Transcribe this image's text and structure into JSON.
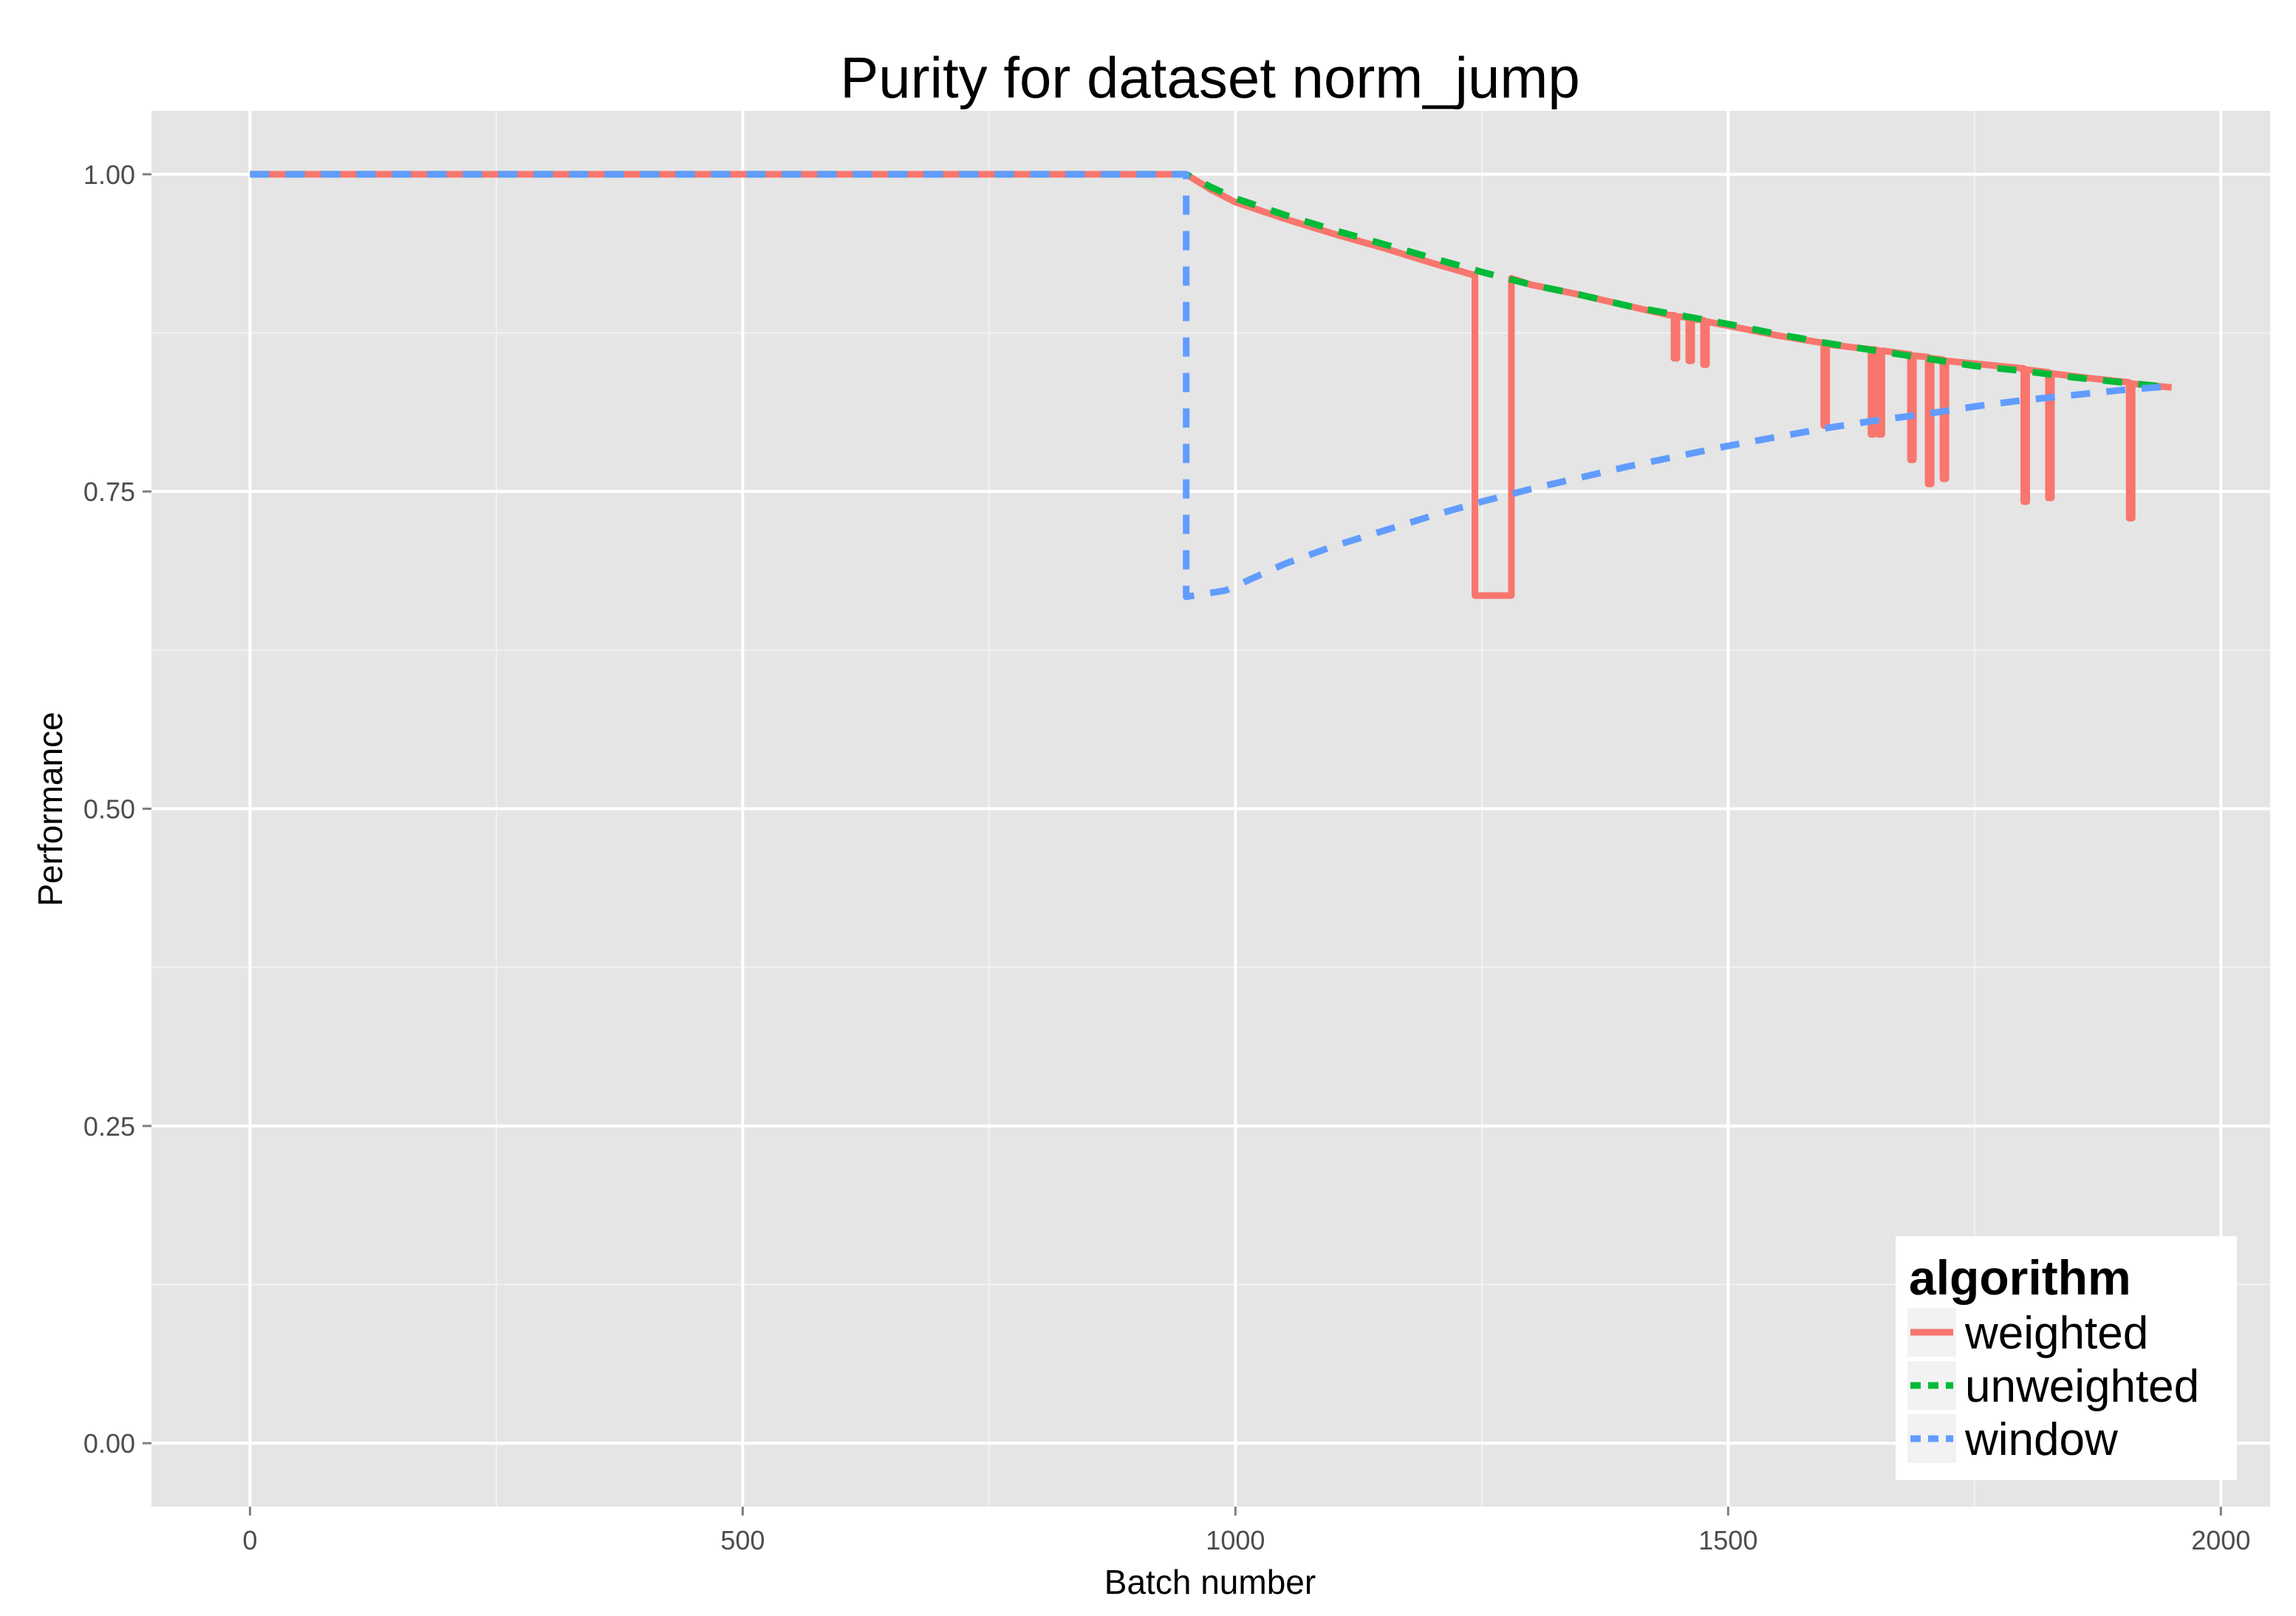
{
  "chart_data": {
    "type": "line",
    "title": "Purity for dataset norm_jump",
    "xlabel": "Batch number",
    "ylabel": "Performance",
    "xlim": [
      -100,
      2050
    ],
    "ylim": [
      -0.05,
      1.05
    ],
    "x_ticks": [
      0,
      500,
      1000,
      1500,
      2000
    ],
    "x_tick_labels": [
      "0",
      "500",
      "1000",
      "1500",
      "2000"
    ],
    "y_ticks": [
      0,
      0.25,
      0.5,
      0.75,
      1
    ],
    "y_tick_labels": [
      "0.00",
      "0.25",
      "0.50",
      "0.75",
      "1.00"
    ],
    "grid": true,
    "legend": {
      "title": "algorithm",
      "position": "bottom-right",
      "entries": [
        "weighted",
        "unweighted",
        "window"
      ]
    },
    "series": [
      {
        "name": "weighted",
        "color": "#F8766D",
        "style": "solid",
        "points": [
          [
            0,
            1.0
          ],
          [
            950,
            1.0
          ],
          [
            975,
            0.988
          ],
          [
            1000,
            0.978
          ],
          [
            1050,
            0.965
          ],
          [
            1100,
            0.953
          ],
          [
            1150,
            0.942
          ],
          [
            1200,
            0.93
          ],
          [
            1240,
            0.921
          ],
          [
            1243,
            0.921
          ],
          [
            1243,
            0.668
          ],
          [
            1280,
            0.668
          ],
          [
            1280,
            0.918
          ],
          [
            1300,
            0.913
          ],
          [
            1350,
            0.905
          ],
          [
            1400,
            0.896
          ],
          [
            1440,
            0.889
          ],
          [
            1445,
            0.889
          ],
          [
            1445,
            0.855
          ],
          [
            1448,
            0.855
          ],
          [
            1448,
            0.888
          ],
          [
            1460,
            0.887
          ],
          [
            1460,
            0.853
          ],
          [
            1463,
            0.853
          ],
          [
            1463,
            0.886
          ],
          [
            1475,
            0.885
          ],
          [
            1475,
            0.85
          ],
          [
            1478,
            0.85
          ],
          [
            1478,
            0.884
          ],
          [
            1550,
            0.873
          ],
          [
            1597,
            0.867
          ],
          [
            1597,
            0.802
          ],
          [
            1600,
            0.802
          ],
          [
            1600,
            0.866
          ],
          [
            1645,
            0.862
          ],
          [
            1645,
            0.795
          ],
          [
            1648,
            0.795
          ],
          [
            1648,
            0.862
          ],
          [
            1653,
            0.861
          ],
          [
            1653,
            0.795
          ],
          [
            1656,
            0.795
          ],
          [
            1656,
            0.861
          ],
          [
            1685,
            0.858
          ],
          [
            1685,
            0.775
          ],
          [
            1688,
            0.775
          ],
          [
            1688,
            0.857
          ],
          [
            1703,
            0.856
          ],
          [
            1703,
            0.756
          ],
          [
            1706,
            0.756
          ],
          [
            1706,
            0.855
          ],
          [
            1718,
            0.854
          ],
          [
            1718,
            0.76
          ],
          [
            1721,
            0.76
          ],
          [
            1721,
            0.853
          ],
          [
            1760,
            0.85
          ],
          [
            1800,
            0.847
          ],
          [
            1800,
            0.742
          ],
          [
            1803,
            0.742
          ],
          [
            1803,
            0.846
          ],
          [
            1825,
            0.844
          ],
          [
            1825,
            0.745
          ],
          [
            1828,
            0.745
          ],
          [
            1828,
            0.843
          ],
          [
            1870,
            0.839
          ],
          [
            1907,
            0.836
          ],
          [
            1907,
            0.729
          ],
          [
            1910,
            0.729
          ],
          [
            1910,
            0.835
          ],
          [
            1950,
            0.832
          ]
        ]
      },
      {
        "name": "unweighted",
        "color": "#00BA38",
        "style": "dashed",
        "points": [
          [
            0,
            1.0
          ],
          [
            950,
            1.0
          ],
          [
            975,
            0.99
          ],
          [
            1000,
            0.981
          ],
          [
            1050,
            0.968
          ],
          [
            1100,
            0.956
          ],
          [
            1150,
            0.945
          ],
          [
            1200,
            0.934
          ],
          [
            1250,
            0.923
          ],
          [
            1300,
            0.913
          ],
          [
            1350,
            0.905
          ],
          [
            1400,
            0.896
          ],
          [
            1450,
            0.889
          ],
          [
            1500,
            0.882
          ],
          [
            1550,
            0.874
          ],
          [
            1600,
            0.867
          ],
          [
            1650,
            0.861
          ],
          [
            1700,
            0.855
          ],
          [
            1750,
            0.849
          ],
          [
            1800,
            0.845
          ],
          [
            1850,
            0.84
          ],
          [
            1900,
            0.836
          ],
          [
            1950,
            0.832
          ]
        ]
      },
      {
        "name": "window",
        "color": "#619CFF",
        "style": "dashed",
        "points": [
          [
            0,
            1.0
          ],
          [
            950,
            1.0
          ],
          [
            950,
            0.667
          ],
          [
            990,
            0.672
          ],
          [
            1050,
            0.693
          ],
          [
            1100,
            0.707
          ],
          [
            1150,
            0.719
          ],
          [
            1200,
            0.731
          ],
          [
            1250,
            0.742
          ],
          [
            1300,
            0.752
          ],
          [
            1350,
            0.761
          ],
          [
            1400,
            0.77
          ],
          [
            1450,
            0.778
          ],
          [
            1500,
            0.786
          ],
          [
            1550,
            0.793
          ],
          [
            1600,
            0.8
          ],
          [
            1650,
            0.806
          ],
          [
            1700,
            0.811
          ],
          [
            1750,
            0.817
          ],
          [
            1800,
            0.822
          ],
          [
            1850,
            0.826
          ],
          [
            1900,
            0.83
          ],
          [
            1950,
            0.833
          ]
        ]
      }
    ]
  }
}
